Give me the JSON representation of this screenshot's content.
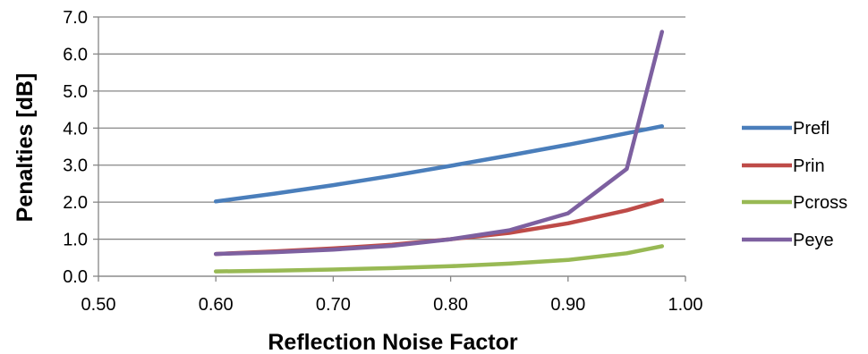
{
  "chart_data": {
    "type": "line",
    "title": "",
    "xlabel": "Reflection Noise Factor",
    "ylabel": "Penalties [dB]",
    "xlim": [
      0.5,
      1.0
    ],
    "ylim": [
      0.0,
      7.0
    ],
    "x_ticks": [
      "0.50",
      "0.60",
      "0.70",
      "0.80",
      "0.90",
      "1.00"
    ],
    "y_ticks": [
      "0.0",
      "1.0",
      "2.0",
      "3.0",
      "4.0",
      "5.0",
      "6.0",
      "7.0"
    ],
    "grid": "horizontal",
    "legend_position": "right",
    "x": [
      0.6,
      0.65,
      0.7,
      0.75,
      0.8,
      0.85,
      0.9,
      0.95,
      0.98
    ],
    "series": [
      {
        "name": "Prefl",
        "color": "#4a7ebb",
        "values": [
          2.02,
          2.23,
          2.46,
          2.71,
          2.98,
          3.26,
          3.55,
          3.86,
          4.05
        ]
      },
      {
        "name": "Prin",
        "color": "#be4b48",
        "values": [
          0.6,
          0.67,
          0.75,
          0.85,
          1.0,
          1.17,
          1.43,
          1.78,
          2.05
        ]
      },
      {
        "name": "Pcross",
        "color": "#98b954",
        "values": [
          0.13,
          0.15,
          0.18,
          0.22,
          0.27,
          0.34,
          0.44,
          0.62,
          0.81
        ]
      },
      {
        "name": "Peye",
        "color": "#7d60a0",
        "values": [
          0.6,
          0.65,
          0.72,
          0.82,
          1.0,
          1.24,
          1.7,
          2.9,
          6.6
        ]
      }
    ]
  }
}
